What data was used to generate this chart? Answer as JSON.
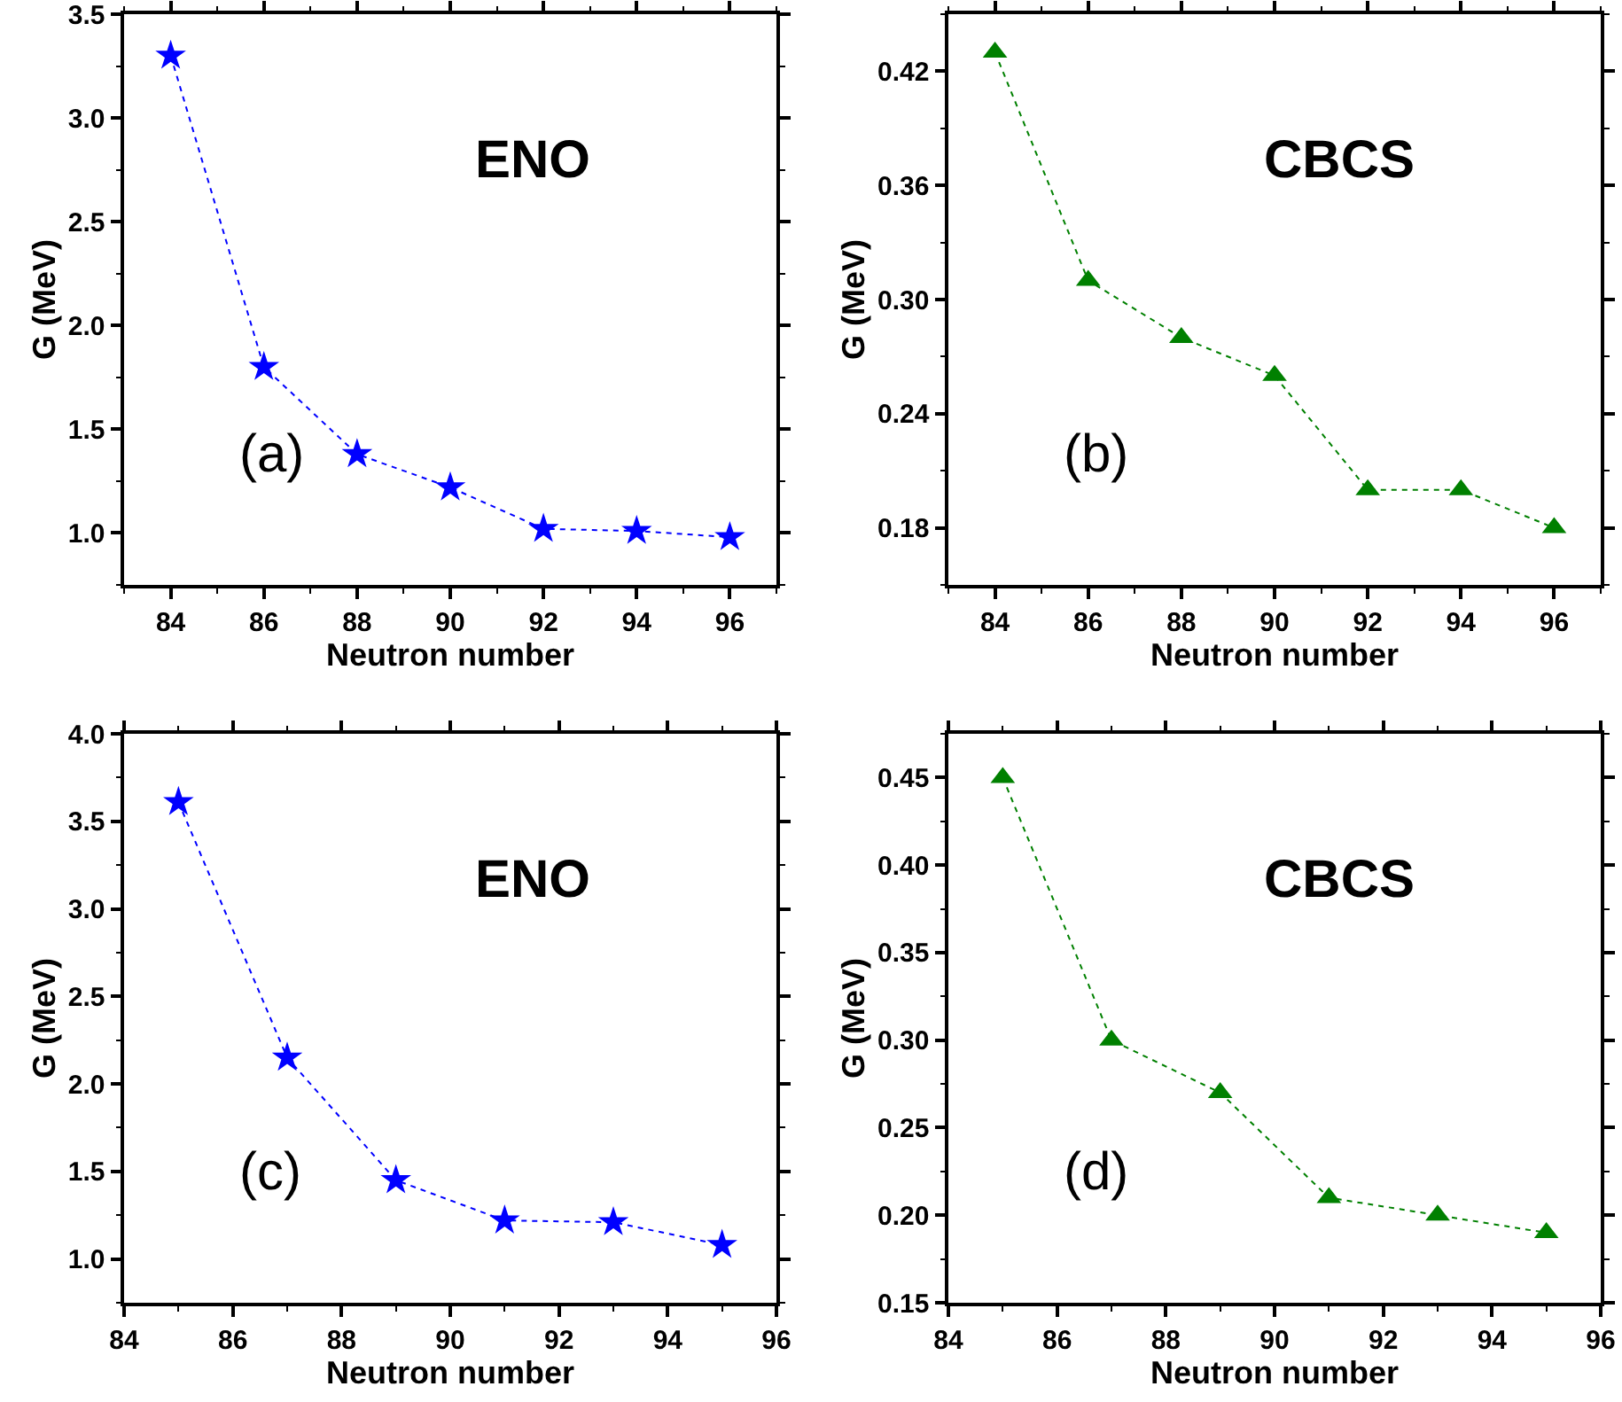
{
  "chart_data": [
    {
      "type": "line",
      "xlabel": "Neutron number",
      "ylabel": "G (MeV)",
      "annotations": [
        "ENO",
        "(a)"
      ],
      "x": [
        84,
        86,
        88,
        90,
        92,
        94,
        96
      ],
      "series": [
        {
          "color": "#0000ff",
          "values": [
            3.3,
            1.8,
            1.38,
            1.22,
            1.02,
            1.01,
            0.98
          ]
        }
      ],
      "xlim": [
        83,
        97
      ],
      "ylim": [
        0.75,
        3.5
      ],
      "xticks": [
        {
          "value": 83,
          "label": null
        },
        84,
        {
          "value": 85,
          "label": null
        },
        86,
        {
          "value": 87,
          "label": null
        },
        88,
        {
          "value": 89,
          "label": null
        },
        90,
        {
          "value": 91,
          "label": null
        },
        92,
        {
          "value": 93,
          "label": null
        },
        94,
        {
          "value": 95,
          "label": null
        },
        96,
        {
          "value": 97,
          "label": null
        }
      ],
      "yticks": [
        {
          "value": 0.75,
          "label": null
        },
        {
          "value": 1.0,
          "label": "1.0"
        },
        {
          "value": 1.25,
          "label": null
        },
        1.5,
        {
          "value": 1.75,
          "label": null
        },
        {
          "value": 2.0,
          "label": "2.0"
        },
        {
          "value": 2.25,
          "label": null
        },
        2.5,
        {
          "value": 2.75,
          "label": null
        },
        {
          "value": 3.0,
          "label": "3.0"
        },
        {
          "value": 3.25,
          "label": null
        },
        3.5
      ],
      "marker": "star",
      "line_style": "dotted"
    },
    {
      "type": "line",
      "xlabel": "Neutron number",
      "ylabel": "G (MeV)",
      "annotations": [
        "CBCS",
        "(b)"
      ],
      "x": [
        84,
        86,
        88,
        90,
        92,
        94,
        96
      ],
      "series": [
        {
          "color": "#008000",
          "values": [
            0.43,
            0.31,
            0.28,
            0.26,
            0.2,
            0.2,
            0.18
          ]
        }
      ],
      "xlim": [
        83,
        97
      ],
      "ylim": [
        0.15,
        0.45
      ],
      "xticks": [
        {
          "value": 83,
          "label": null
        },
        84,
        {
          "value": 85,
          "label": null
        },
        86,
        {
          "value": 87,
          "label": null
        },
        88,
        {
          "value": 89,
          "label": null
        },
        90,
        {
          "value": 91,
          "label": null
        },
        92,
        {
          "value": 93,
          "label": null
        },
        94,
        {
          "value": 95,
          "label": null
        },
        96,
        {
          "value": 97,
          "label": null
        }
      ],
      "yticks": [
        {
          "value": 0.15,
          "label": null
        },
        0.18,
        {
          "value": 0.21,
          "label": null
        },
        0.24,
        {
          "value": 0.27,
          "label": null
        },
        {
          "value": 0.3,
          "label": "0.30"
        },
        {
          "value": 0.33,
          "label": null
        },
        0.36,
        {
          "value": 0.39,
          "label": null
        },
        0.42,
        {
          "value": 0.45,
          "label": null
        }
      ],
      "marker": "triangle",
      "line_style": "dotted"
    },
    {
      "type": "line",
      "xlabel": "Neutron number",
      "ylabel": "G (MeV)",
      "annotations": [
        "ENO",
        "(c)"
      ],
      "x": [
        85,
        87,
        89,
        91,
        93,
        95
      ],
      "series": [
        {
          "color": "#0000ff",
          "values": [
            3.61,
            2.15,
            1.45,
            1.22,
            1.21,
            1.08
          ]
        }
      ],
      "xlim": [
        84,
        96
      ],
      "ylim": [
        0.75,
        4.0
      ],
      "xticks": [
        84,
        {
          "value": 85,
          "label": null
        },
        86,
        {
          "value": 87,
          "label": null
        },
        88,
        {
          "value": 89,
          "label": null
        },
        90,
        {
          "value": 91,
          "label": null
        },
        92,
        {
          "value": 93,
          "label": null
        },
        94,
        {
          "value": 95,
          "label": null
        },
        96
      ],
      "yticks": [
        {
          "value": 0.75,
          "label": null
        },
        {
          "value": 1.0,
          "label": "1.0"
        },
        {
          "value": 1.25,
          "label": null
        },
        1.5,
        {
          "value": 1.75,
          "label": null
        },
        {
          "value": 2.0,
          "label": "2.0"
        },
        {
          "value": 2.25,
          "label": null
        },
        2.5,
        {
          "value": 2.75,
          "label": null
        },
        {
          "value": 3.0,
          "label": "3.0"
        },
        {
          "value": 3.25,
          "label": null
        },
        3.5,
        {
          "value": 3.75,
          "label": null
        },
        {
          "value": 4.0,
          "label": "4.0"
        }
      ],
      "marker": "star",
      "line_style": "dotted"
    },
    {
      "type": "line",
      "xlabel": "Neutron number",
      "ylabel": "G (MeV)",
      "annotations": [
        "CBCS",
        "(d)"
      ],
      "x": [
        85,
        87,
        89,
        91,
        93,
        95
      ],
      "series": [
        {
          "color": "#008000",
          "values": [
            0.45,
            0.3,
            0.27,
            0.21,
            0.2,
            0.19
          ]
        }
      ],
      "xlim": [
        84,
        96
      ],
      "ylim": [
        0.15,
        0.475
      ],
      "xticks": [
        84,
        {
          "value": 85,
          "label": null
        },
        86,
        {
          "value": 87,
          "label": null
        },
        88,
        {
          "value": 89,
          "label": null
        },
        90,
        {
          "value": 91,
          "label": null
        },
        92,
        {
          "value": 93,
          "label": null
        },
        94,
        {
          "value": 95,
          "label": null
        },
        96
      ],
      "yticks": [
        {
          "value": 0.15,
          "label": "0.15"
        },
        {
          "value": 0.175,
          "label": null
        },
        {
          "value": 0.2,
          "label": "0.20"
        },
        {
          "value": 0.225,
          "label": null
        },
        0.25,
        {
          "value": 0.275,
          "label": null
        },
        {
          "value": 0.3,
          "label": "0.30"
        },
        {
          "value": 0.325,
          "label": null
        },
        0.35,
        {
          "value": 0.375,
          "label": null
        },
        {
          "value": 0.4,
          "label": "0.40"
        },
        {
          "value": 0.425,
          "label": null
        },
        0.45,
        {
          "value": 0.475,
          "label": null
        }
      ],
      "marker": "triangle",
      "line_style": "dotted"
    }
  ]
}
